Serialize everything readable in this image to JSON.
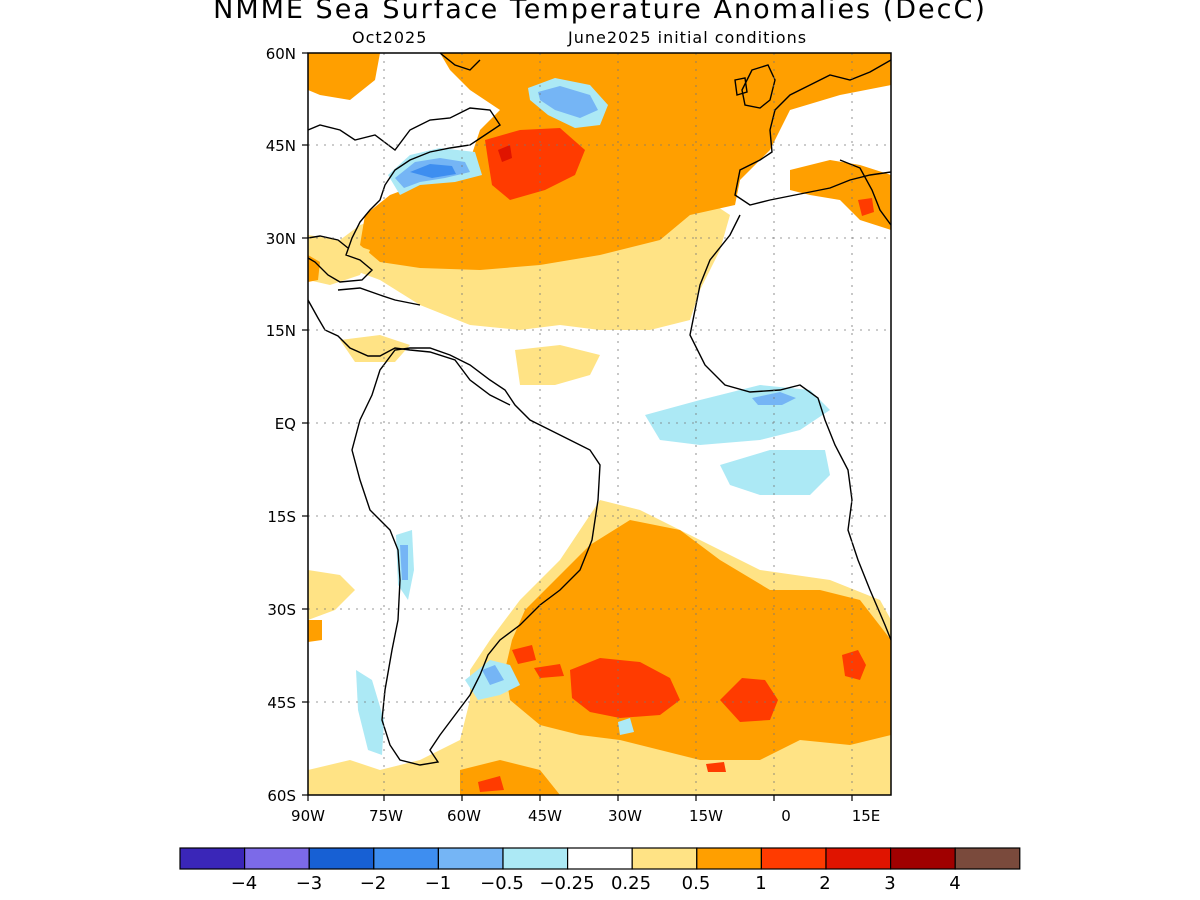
{
  "title": "NMME Sea Surface Temperature Anomalies (DecC)",
  "subtitle_left": "Oct2025",
  "subtitle_right": "June2025 initial conditions",
  "map": {
    "lon_labels": [
      "90W",
      "75W",
      "60W",
      "45W",
      "30W",
      "15W",
      "0",
      "15E"
    ],
    "lat_labels": [
      "60N",
      "45N",
      "30N",
      "15N",
      "EQ",
      "15S",
      "30S",
      "45S",
      "60S"
    ],
    "region": "Atlantic Ocean",
    "colors": {
      "pos_025": "#ffe385",
      "pos_05": "#ff9f00",
      "pos_1": "#ff3b00",
      "pos_2": "#e01400",
      "neg_025": "#ace9f5",
      "neg_05": "#75b5f5",
      "neg_1": "#3e8ef0",
      "neg_2": "#1760d4",
      "land_outline": "#000000"
    }
  },
  "colorbar": {
    "colors": [
      "#3a26b8",
      "#7c6ae8",
      "#1760d4",
      "#3e8ef0",
      "#75b5f5",
      "#ace9f5",
      "#ffffff",
      "#ffe385",
      "#ff9f00",
      "#ff3b00",
      "#e01400",
      "#a00000",
      "#7a4a3c"
    ],
    "labels": [
      "−4",
      "−3",
      "−2",
      "−1",
      "−0.5",
      "−0.25",
      "0.25",
      "0.5",
      "1",
      "2",
      "3",
      "4"
    ]
  }
}
